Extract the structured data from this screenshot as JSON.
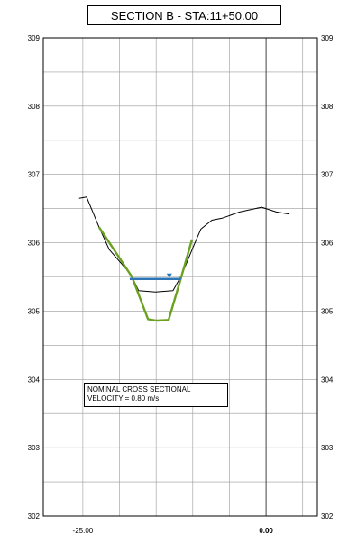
{
  "chart_data": {
    "type": "line",
    "title": "SECTION B - STA:11+50.00",
    "xlabel": "",
    "ylabel": "",
    "xlim": [
      -30.4,
      7.0
    ],
    "ylim": [
      302,
      309
    ],
    "x_ticks": [
      {
        "value": -25,
        "label": "-25.00",
        "bold": false
      },
      {
        "value": 0,
        "label": "0.00",
        "bold": true
      }
    ],
    "y_ticks": [
      {
        "value": 302,
        "label": "302"
      },
      {
        "value": 303,
        "label": "303"
      },
      {
        "value": 304,
        "label": "304"
      },
      {
        "value": 305,
        "label": "305"
      },
      {
        "value": 306,
        "label": "306"
      },
      {
        "value": 307,
        "label": "307"
      },
      {
        "value": 308,
        "label": "308"
      },
      {
        "value": 309,
        "label": "309"
      }
    ],
    "grid": true,
    "series": [
      {
        "color": "#000000",
        "points": [
          [
            -25.5,
            306.65
          ],
          [
            -24.5,
            306.67
          ],
          [
            -22.8,
            306.23
          ],
          [
            -21.4,
            305.9
          ],
          [
            -18.4,
            305.53
          ],
          [
            -17.4,
            305.3
          ],
          [
            -15.1,
            305.28
          ],
          [
            -12.7,
            305.3
          ],
          [
            -11.5,
            305.53
          ],
          [
            -9.9,
            305.95
          ],
          [
            -8.9,
            306.2
          ],
          [
            -7.4,
            306.33
          ],
          [
            -6.0,
            306.36
          ],
          [
            -3.6,
            306.45
          ],
          [
            -0.6,
            306.52
          ],
          [
            1.4,
            306.45
          ],
          [
            3.2,
            306.42
          ]
        ]
      },
      {
        "color": "#6aa121",
        "points": [
          [
            -22.8,
            306.23
          ],
          [
            -18.3,
            305.5
          ],
          [
            -16.1,
            304.88
          ],
          [
            -14.9,
            304.86
          ],
          [
            -13.3,
            304.87
          ],
          [
            -11.7,
            305.45
          ],
          [
            -10.1,
            306.05
          ]
        ]
      }
    ],
    "water_surface": {
      "color": "#2e75b6",
      "elevation": 305.47,
      "x_start": -18.6,
      "x_end": -11.6,
      "marker_x": -13.2
    },
    "annotation": {
      "lines": [
        "NOMINAL CROSS SECTIONAL",
        "VELOCITY = 0.80 m/s"
      ]
    }
  }
}
